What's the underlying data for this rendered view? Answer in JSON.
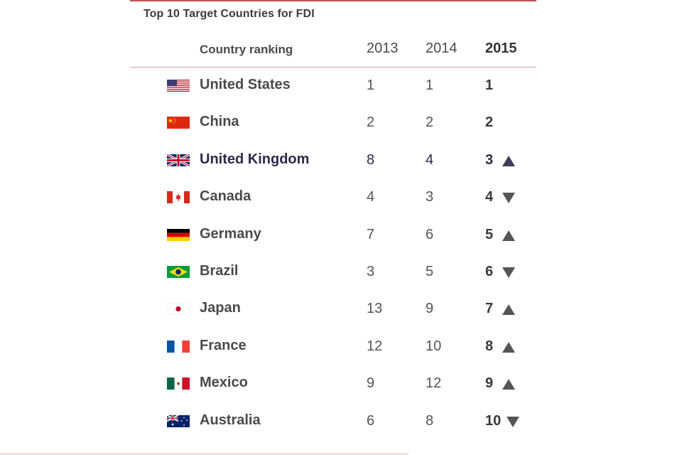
{
  "title": "Top 10 Target Countries for FDI",
  "headers": {
    "country": "Country ranking",
    "y2013": "2013",
    "y2014": "2014",
    "y2015": "2015"
  },
  "colors": {
    "accent_rule": "#c0504d",
    "arrow": "#555555",
    "highlight_arrow": "#3d3a5a",
    "highlight_text": "#2c2a4a"
  },
  "chart_data": {
    "type": "table",
    "title": "Top 10 Target Countries for FDI",
    "columns": [
      "Country ranking",
      "2013",
      "2014",
      "2015"
    ],
    "rows": [
      {
        "country": "United States",
        "flag": "us-flag",
        "y2013": "1",
        "y2014": "1",
        "y2015": "1",
        "trend": "none"
      },
      {
        "country": "China",
        "flag": "china-flag",
        "y2013": "2",
        "y2014": "2",
        "y2015": "2",
        "trend": "none"
      },
      {
        "country": "United Kingdom",
        "flag": "uk-flag",
        "y2013": "8",
        "y2014": "4",
        "y2015": "3",
        "trend": "up",
        "highlight": true
      },
      {
        "country": "Canada",
        "flag": "canada-flag",
        "y2013": "4",
        "y2014": "3",
        "y2015": "4",
        "trend": "down"
      },
      {
        "country": "Germany",
        "flag": "germany-flag",
        "y2013": "7",
        "y2014": "6",
        "y2015": "5",
        "trend": "up"
      },
      {
        "country": "Brazil",
        "flag": "brazil-flag",
        "y2013": "3",
        "y2014": "5",
        "y2015": "6",
        "trend": "down"
      },
      {
        "country": "Japan",
        "flag": "japan-flag",
        "y2013": "13",
        "y2014": "9",
        "y2015": "7",
        "trend": "up"
      },
      {
        "country": "France",
        "flag": "france-flag",
        "y2013": "12",
        "y2014": "10",
        "y2015": "8",
        "trend": "up"
      },
      {
        "country": "Mexico",
        "flag": "mexico-flag",
        "y2013": "9",
        "y2014": "12",
        "y2015": "9",
        "trend": "up"
      },
      {
        "country": "Australia",
        "flag": "australia-flag",
        "y2013": "6",
        "y2014": "8",
        "y2015": "10",
        "trend": "down"
      }
    ]
  }
}
